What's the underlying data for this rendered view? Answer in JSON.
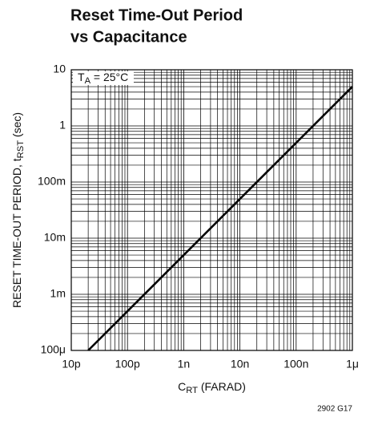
{
  "chart_data": {
    "type": "line",
    "title": [
      "Reset Time-Out Period",
      "vs Capacitance"
    ],
    "x_label": {
      "text": "C",
      "subscript": "RT",
      "suffix": " (FARAD)"
    },
    "y_label": {
      "text": "RESET TIME-OUT PERIOD, t",
      "subscript": "RST",
      "suffix": " (sec)"
    },
    "annotation": {
      "text": "T",
      "subscript": "A",
      "suffix": " = 25°C"
    },
    "footnote": "2902 G17",
    "x_scale": "log",
    "y_scale": "log",
    "grid": "major-minor",
    "color": "#000000",
    "x": [
      2e-11,
      1e-06
    ],
    "values": [
      0.0001,
      5
    ],
    "xlim": [
      1e-11,
      1e-06
    ],
    "ylim": [
      0.0001,
      10
    ],
    "xticks": [
      {
        "value": 1e-11,
        "label": "10p"
      },
      {
        "value": 1e-10,
        "label": "100p"
      },
      {
        "value": 1e-09,
        "label": "1n"
      },
      {
        "value": 1e-08,
        "label": "10n"
      },
      {
        "value": 1e-07,
        "label": "100n"
      },
      {
        "value": 1e-06,
        "label": "1μ"
      }
    ],
    "yticks": [
      {
        "value": 0.0001,
        "label": "100μ"
      },
      {
        "value": 0.001,
        "label": "1m"
      },
      {
        "value": 0.01,
        "label": "10m"
      },
      {
        "value": 0.1,
        "label": "100m"
      },
      1,
      10
    ]
  }
}
